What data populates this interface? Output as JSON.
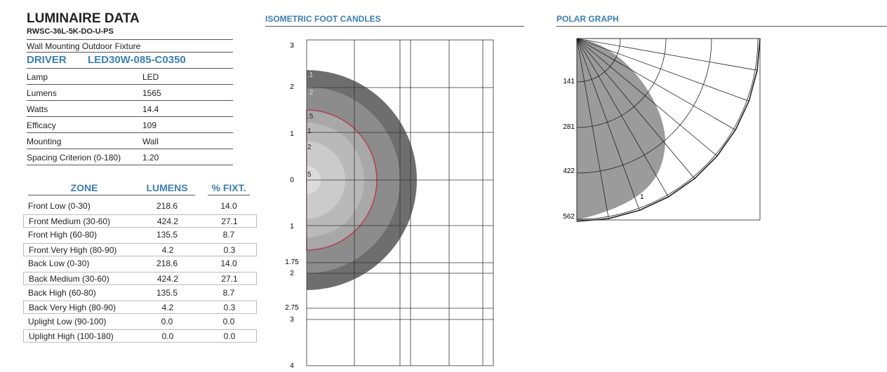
{
  "luminaire": {
    "title": "LUMINAIRE DATA",
    "model": "RWSC-36L-5K-DO-U-PS",
    "description": "Wall Mounting Outdoor Fixture",
    "driver_label": "DRIVER",
    "driver": "LED30W-085-C0350",
    "specs": [
      [
        "Lamp",
        "LED"
      ],
      [
        "Lumens",
        "1565"
      ],
      [
        "Watts",
        "14.4"
      ],
      [
        "Efficacy",
        "109"
      ],
      [
        "Mounting",
        "Wall"
      ],
      [
        "Spacing Criterion (0-180)",
        "1.20"
      ]
    ]
  },
  "zones": {
    "headers": [
      "ZONE",
      "LUMENS",
      "% FIXT."
    ],
    "rows": [
      [
        "Front Low (0-30)",
        "218.6",
        "14.0"
      ],
      [
        "Front Medium (30-60)",
        "424.2",
        "27.1"
      ],
      [
        "Front High (60-80)",
        "135.5",
        "8.7"
      ],
      [
        "Front Very High (80-90)",
        "4.2",
        "0.3"
      ],
      [
        "Back Low (0-30)",
        "218.6",
        "14.0"
      ],
      [
        "Back Medium (30-60)",
        "424.2",
        "27.1"
      ],
      [
        "Back High (60-80)",
        "135.5",
        "8.7"
      ],
      [
        "Back Very High (80-90)",
        "4.2",
        "0.3"
      ],
      [
        "Uplight Low (90-100)",
        "0.0",
        "0.0"
      ],
      [
        "Uplight High (100-180)",
        "0.0",
        "0.0"
      ]
    ]
  },
  "isometric": {
    "title": "ISOMETRIC FOOT CANDLES",
    "y_labels": [
      "3",
      "2",
      "1",
      "0",
      "1",
      "1.75",
      "2",
      "2.75",
      "3",
      "4"
    ],
    "contour_labels": [
      ".1",
      ".2",
      ".5",
      "1",
      "2",
      "5"
    ]
  },
  "polar": {
    "title": "POLAR GRAPH",
    "r_labels": [
      "141",
      "281",
      "422",
      "562"
    ],
    "contour_label": "1"
  }
}
